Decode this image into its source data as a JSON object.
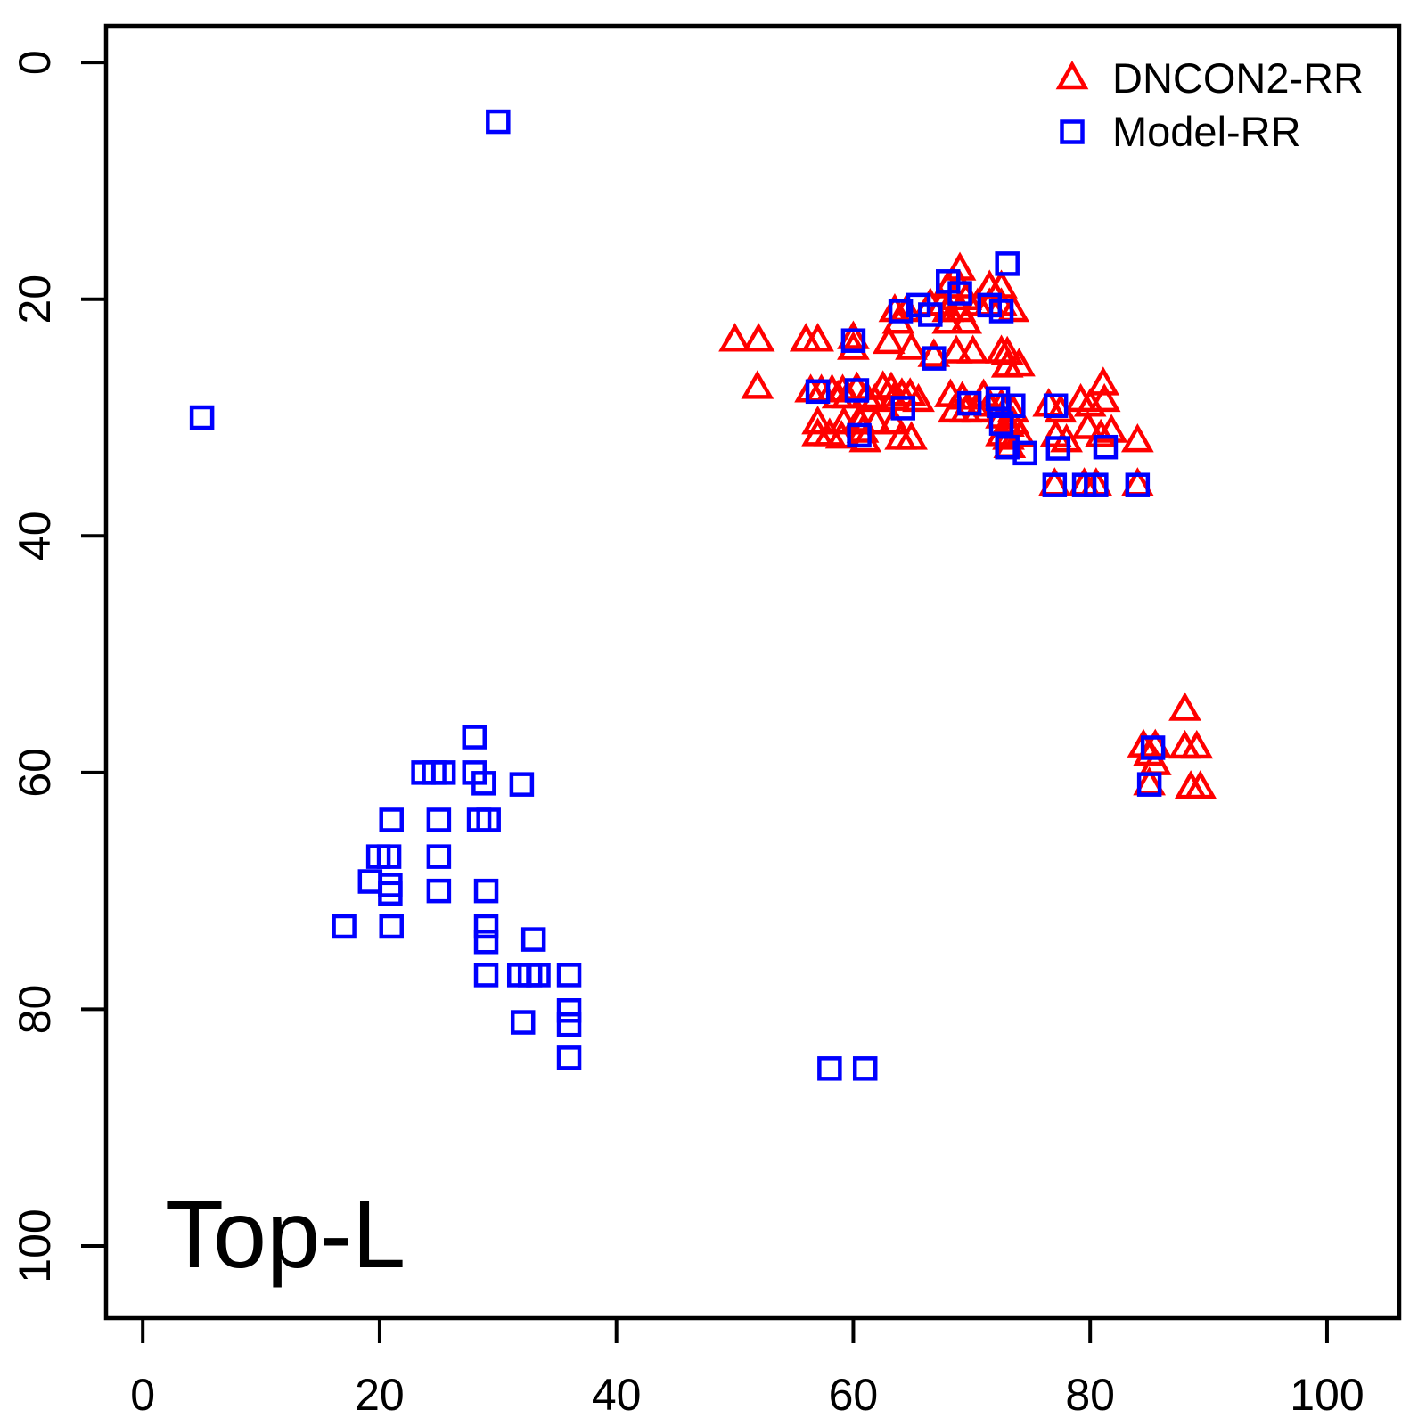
{
  "chart_data": {
    "type": "scatter",
    "annotation": "Top-L",
    "xlabel": "",
    "ylabel": "",
    "x_ticks": [
      "0",
      "20",
      "40",
      "60",
      "80",
      "100"
    ],
    "y_ticks": [
      "0",
      "20",
      "40",
      "60",
      "80",
      "100"
    ],
    "x_tick_values": [
      0,
      20,
      40,
      60,
      80,
      100
    ],
    "y_tick_values": [
      0,
      20,
      40,
      60,
      80,
      100
    ],
    "x_range": [
      -3.1,
      106.1
    ],
    "y_range": [
      -3.1,
      106.1
    ],
    "y_axis_inverted": true,
    "grid": false,
    "legend_position": "top-right",
    "axis_color": "#000000",
    "series": [
      {
        "name": "DNCON2-RR",
        "marker": "open-triangle",
        "color": "#FF0000",
        "points": [
          [
            69,
            17.5
          ],
          [
            68,
            19
          ],
          [
            69,
            19
          ],
          [
            71.5,
            19
          ],
          [
            72.5,
            19
          ],
          [
            68.5,
            20
          ],
          [
            69.5,
            20
          ],
          [
            66.5,
            20.5
          ],
          [
            67.5,
            20.5
          ],
          [
            70.5,
            20.5
          ],
          [
            71.5,
            20.5
          ],
          [
            72.5,
            20.5
          ],
          [
            63.5,
            21
          ],
          [
            64.5,
            21
          ],
          [
            68,
            21
          ],
          [
            69,
            21
          ],
          [
            73.5,
            21
          ],
          [
            63.8,
            22
          ],
          [
            68,
            22
          ],
          [
            69.5,
            22
          ],
          [
            50,
            23.5
          ],
          [
            52,
            23.5
          ],
          [
            56,
            23.5
          ],
          [
            57,
            23.5
          ],
          [
            60,
            23.3
          ],
          [
            63,
            23.7
          ],
          [
            60,
            24.2
          ],
          [
            64.9,
            24.2
          ],
          [
            66.8,
            24.8
          ],
          [
            68.7,
            24.5
          ],
          [
            70.1,
            24.5
          ],
          [
            72.5,
            24.5
          ],
          [
            73,
            24.6
          ],
          [
            73,
            25.7
          ],
          [
            74,
            25.6
          ],
          [
            51.9,
            27.5
          ],
          [
            56.4,
            27.8
          ],
          [
            57.3,
            27.8
          ],
          [
            58.2,
            27.8
          ],
          [
            59.1,
            27.8
          ],
          [
            58.7,
            28.3
          ],
          [
            59.5,
            28.3
          ],
          [
            60.3,
            27.6
          ],
          [
            61.1,
            28.3
          ],
          [
            61.8,
            28.6
          ],
          [
            62.5,
            27.5
          ],
          [
            63.2,
            27.6
          ],
          [
            63.4,
            28.5
          ],
          [
            64.1,
            28.1
          ],
          [
            64.8,
            28.1
          ],
          [
            65.5,
            28.6
          ],
          [
            68.2,
            28.2
          ],
          [
            69.2,
            28.4
          ],
          [
            71,
            28.2
          ],
          [
            81.1,
            27.2
          ],
          [
            71.5,
            29
          ],
          [
            72.5,
            29
          ],
          [
            73.5,
            29.5
          ],
          [
            76.5,
            29
          ],
          [
            77.5,
            29.5
          ],
          [
            79.2,
            28.6
          ],
          [
            80,
            29
          ],
          [
            81.2,
            28.6
          ],
          [
            57,
            30.5
          ],
          [
            59.2,
            30.5
          ],
          [
            60.6,
            30.5
          ],
          [
            61.9,
            30.5
          ],
          [
            63.4,
            30.5
          ],
          [
            68.5,
            29.5
          ],
          [
            69.5,
            29.5
          ],
          [
            70.5,
            29.5
          ],
          [
            57,
            31.5
          ],
          [
            58,
            31.5
          ],
          [
            59,
            31.7
          ],
          [
            60.5,
            30.3
          ],
          [
            60.8,
            31.2
          ],
          [
            61,
            32
          ],
          [
            64,
            31.8
          ],
          [
            64.9,
            31.8
          ],
          [
            72.5,
            30
          ],
          [
            73.5,
            30.5
          ],
          [
            72.5,
            31.5
          ],
          [
            73.2,
            32.5
          ],
          [
            73.1,
            30.7
          ],
          [
            73.1,
            31.8
          ],
          [
            74.1,
            31.6
          ],
          [
            77.1,
            31.6
          ],
          [
            78,
            32
          ],
          [
            79.8,
            30.9
          ],
          [
            80.9,
            31.6
          ],
          [
            81.8,
            31.2
          ],
          [
            84,
            32
          ],
          [
            77,
            35.7
          ],
          [
            79.5,
            35.7
          ],
          [
            80.5,
            35.7
          ],
          [
            84,
            35.7
          ],
          [
            88,
            54.7
          ],
          [
            84.5,
            57.8
          ],
          [
            85.5,
            57.8
          ],
          [
            88,
            57.9
          ],
          [
            89,
            57.9
          ],
          [
            85,
            58.5
          ],
          [
            85.5,
            59.3
          ],
          [
            85,
            61
          ],
          [
            88.5,
            61.3
          ],
          [
            89.3,
            61.3
          ]
        ]
      },
      {
        "name": "Model-RR",
        "marker": "open-square",
        "color": "#0000FF",
        "points": [
          [
            73,
            17
          ],
          [
            68,
            18.5
          ],
          [
            69,
            19.5
          ],
          [
            65.5,
            20.5
          ],
          [
            66.5,
            21.3
          ],
          [
            64,
            21
          ],
          [
            71.5,
            20.5
          ],
          [
            72.5,
            21
          ],
          [
            60,
            23.5
          ],
          [
            66.8,
            25
          ],
          [
            57,
            27.8
          ],
          [
            60.3,
            27.7
          ],
          [
            64.2,
            29.2
          ],
          [
            69.8,
            28.8
          ],
          [
            72.2,
            28.4
          ],
          [
            72.3,
            29
          ],
          [
            73.5,
            29
          ],
          [
            77.1,
            29
          ],
          [
            60.5,
            31.5
          ],
          [
            72.5,
            30.5
          ],
          [
            73,
            32.5
          ],
          [
            74.5,
            33
          ],
          [
            77.3,
            32.6
          ],
          [
            81.3,
            32.5
          ],
          [
            77,
            35.7
          ],
          [
            79.5,
            35.7
          ],
          [
            80.5,
            35.7
          ],
          [
            84,
            35.7
          ],
          [
            85.3,
            57.9
          ],
          [
            85,
            61
          ],
          [
            30,
            5
          ],
          [
            5,
            30
          ],
          [
            58,
            85
          ],
          [
            61,
            85
          ],
          [
            28,
            57
          ],
          [
            23.7,
            60
          ],
          [
            24.6,
            60
          ],
          [
            25.4,
            60
          ],
          [
            28,
            60
          ],
          [
            28.8,
            60.9
          ],
          [
            32,
            61
          ],
          [
            21,
            64
          ],
          [
            25,
            64
          ],
          [
            28.4,
            64
          ],
          [
            29.2,
            64
          ],
          [
            19.9,
            67.1
          ],
          [
            20.8,
            67.1
          ],
          [
            25,
            67.1
          ],
          [
            19.2,
            69.2
          ],
          [
            20.9,
            69.5
          ],
          [
            20.9,
            70.2
          ],
          [
            25,
            70
          ],
          [
            29,
            70
          ],
          [
            17,
            73
          ],
          [
            21,
            73
          ],
          [
            29,
            73
          ],
          [
            29,
            74.3
          ],
          [
            33,
            74.1
          ],
          [
            29,
            77.1
          ],
          [
            31.8,
            77.1
          ],
          [
            32.7,
            77.1
          ],
          [
            33.4,
            77.1
          ],
          [
            36,
            77.1
          ],
          [
            36,
            80.1
          ],
          [
            32.1,
            81.1
          ],
          [
            36,
            81.3
          ],
          [
            36,
            84.1
          ]
        ]
      }
    ]
  }
}
